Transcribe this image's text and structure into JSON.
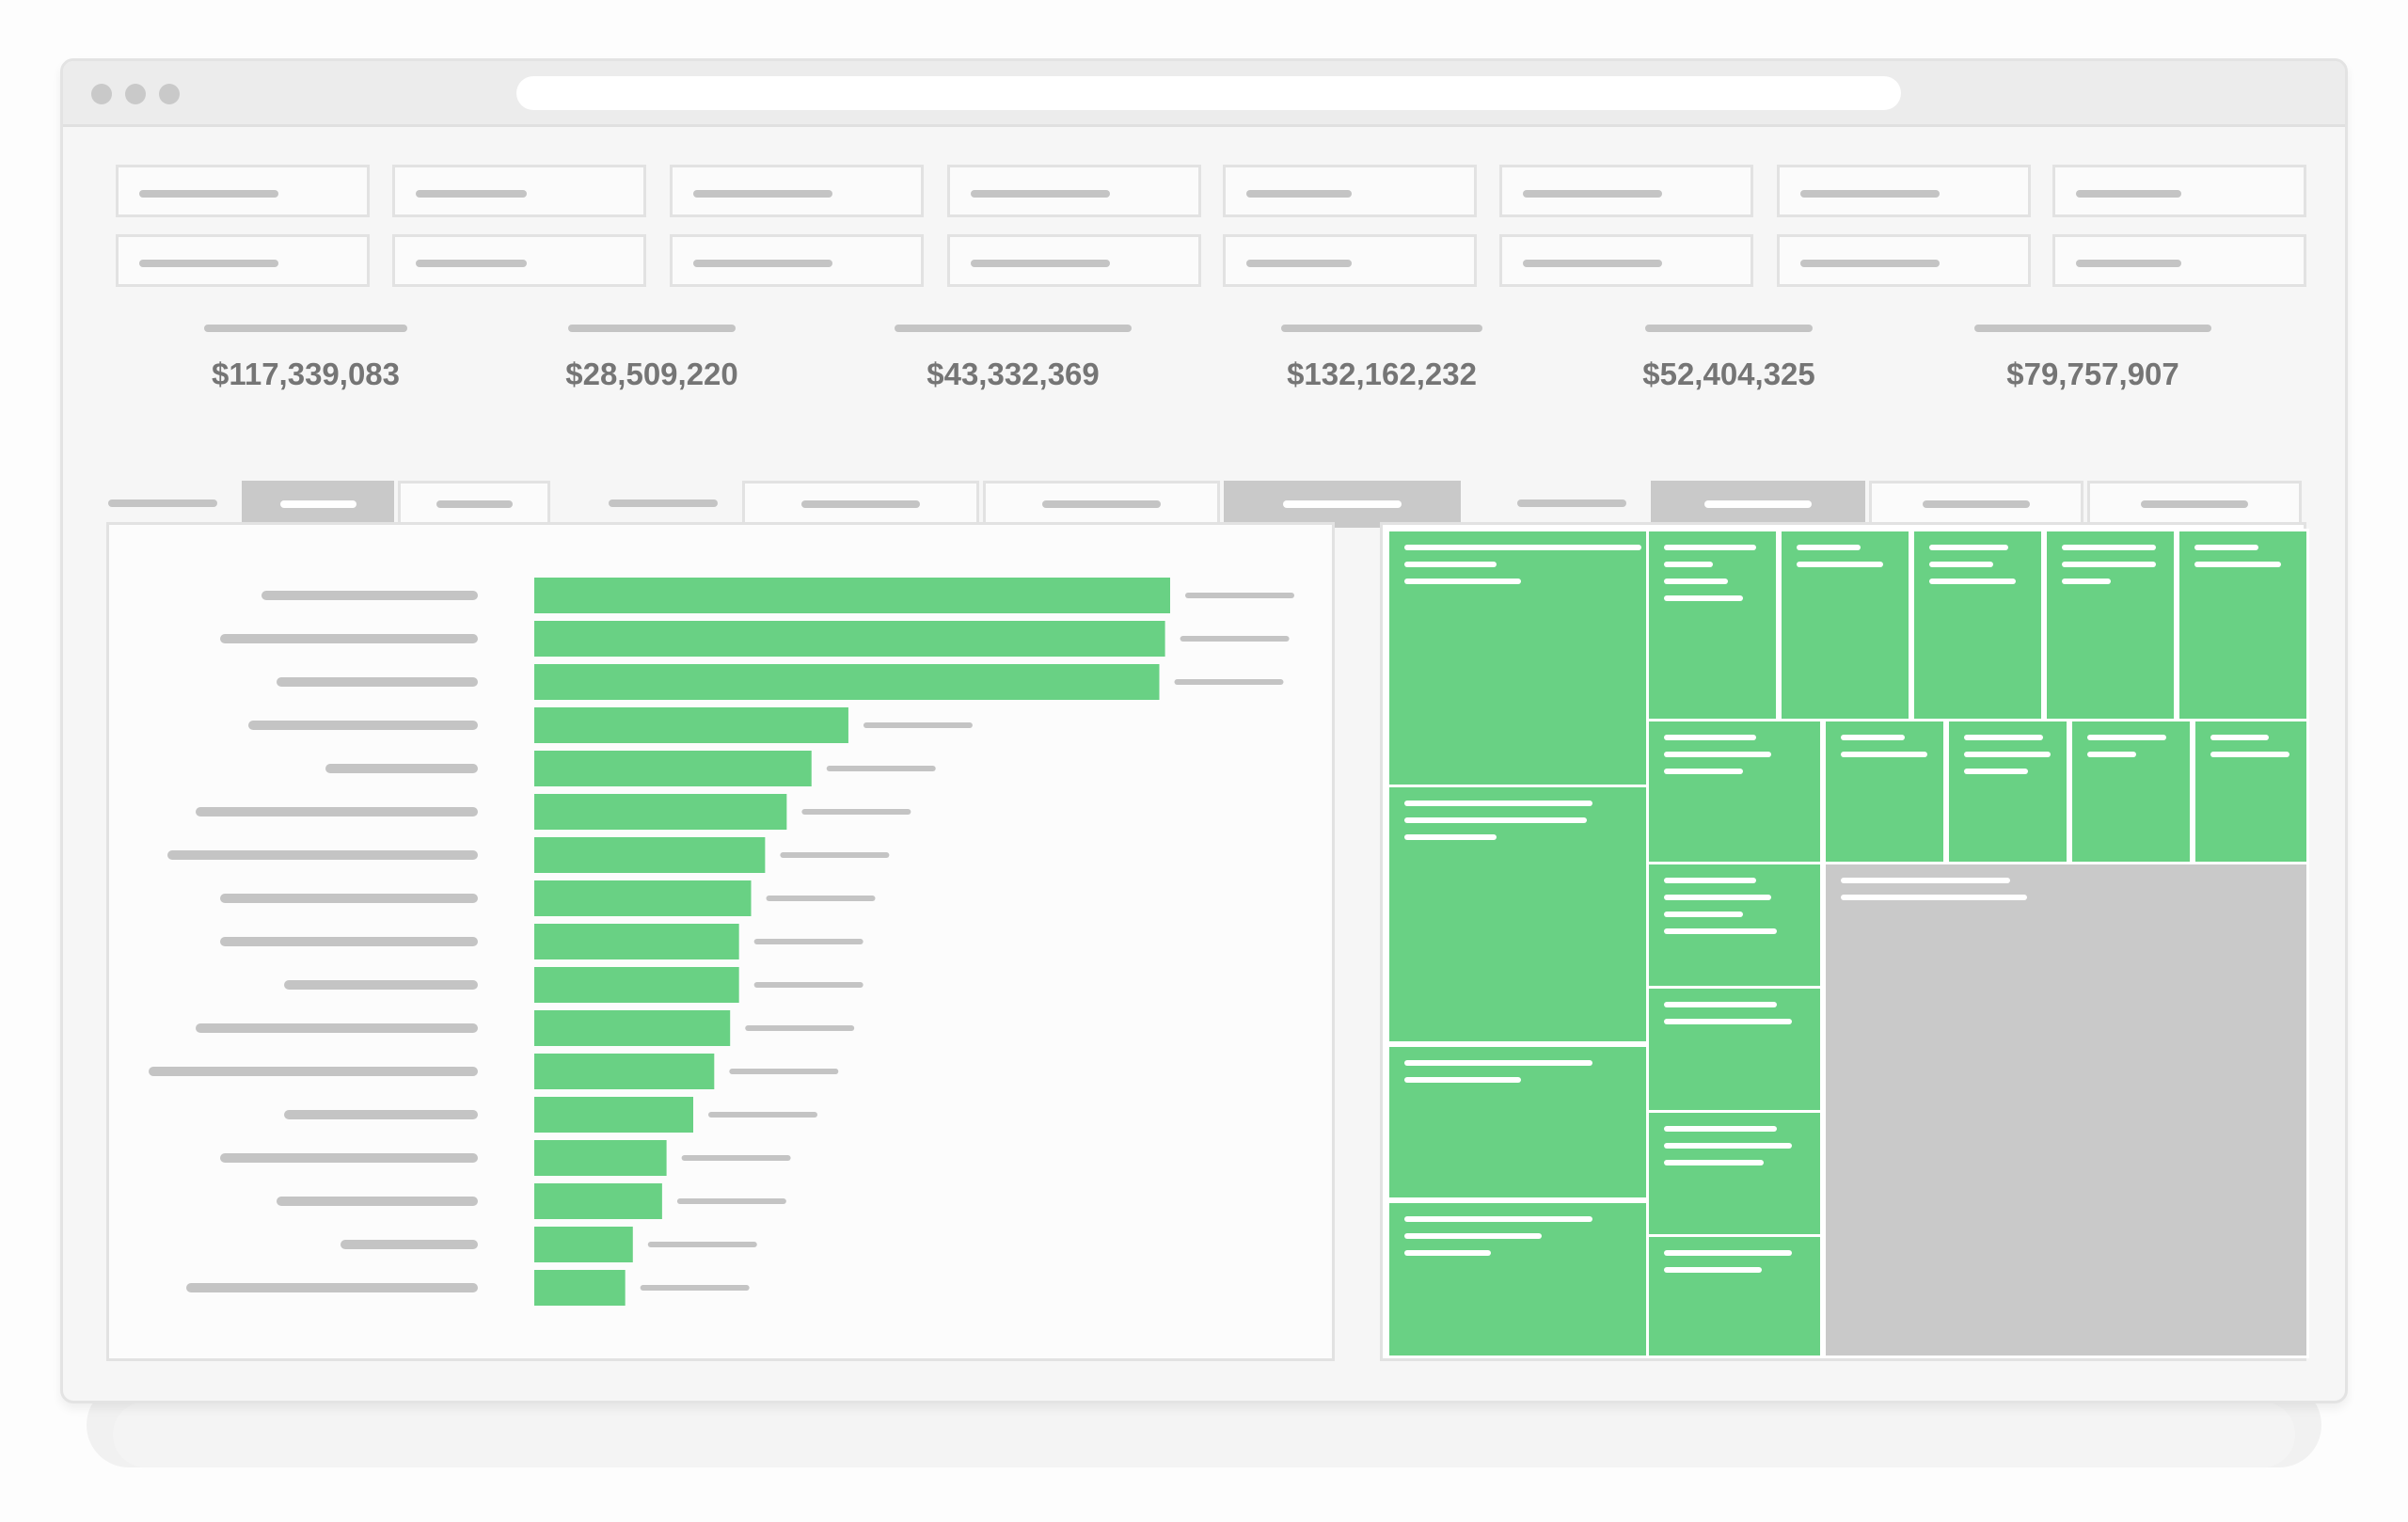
{
  "window": {
    "traffic_lights": [
      "close-dot",
      "minimize-dot",
      "zoom-dot"
    ]
  },
  "kpis": [
    {
      "value": "$117,339,083"
    },
    {
      "value": "$28,509,220"
    },
    {
      "value": "$43,332,369"
    },
    {
      "value": "$132,162,232"
    },
    {
      "value": "$52,404,325"
    },
    {
      "value": "$79,757,907"
    }
  ],
  "colors": {
    "accent_green": "#69d184",
    "inactive_gray": "#c9c9c9",
    "value_text": "#757575",
    "placeholder_bar": "#c4c4c4"
  },
  "segment_groups": [
    {
      "active_index": 0,
      "count": 2
    },
    {
      "active_index": 2,
      "count": 3
    },
    {
      "active_index": 0,
      "count": 3
    }
  ],
  "chart_data": [
    {
      "type": "bar",
      "orientation": "horizontal",
      "values": [
        100,
        99.2,
        98.3,
        49.4,
        43.6,
        39.7,
        36.3,
        34.1,
        32.2,
        32.2,
        30.8,
        28.3,
        25.0,
        20.8,
        20.1,
        15.5,
        14.3
      ]
    },
    {
      "type": "treemap",
      "cells": [
        {
          "color": "#69d184"
        },
        {
          "color": "#69d184"
        },
        {
          "color": "#69d184"
        },
        {
          "color": "#69d184"
        },
        {
          "color": "#69d184"
        },
        {
          "color": "#69d184"
        },
        {
          "color": "#69d184"
        },
        {
          "color": "#69d184"
        },
        {
          "color": "#69d184"
        },
        {
          "color": "#69d184"
        },
        {
          "color": "#69d184"
        },
        {
          "color": "#69d184"
        },
        {
          "color": "#69d184"
        },
        {
          "color": "#69d184"
        },
        {
          "color": "#69d184"
        },
        {
          "color": "#69d184"
        },
        {
          "color": "#69d184"
        },
        {
          "color": "#69d184"
        },
        {
          "color": "#69d184"
        },
        {
          "color": "#c9c9c9"
        }
      ]
    }
  ]
}
